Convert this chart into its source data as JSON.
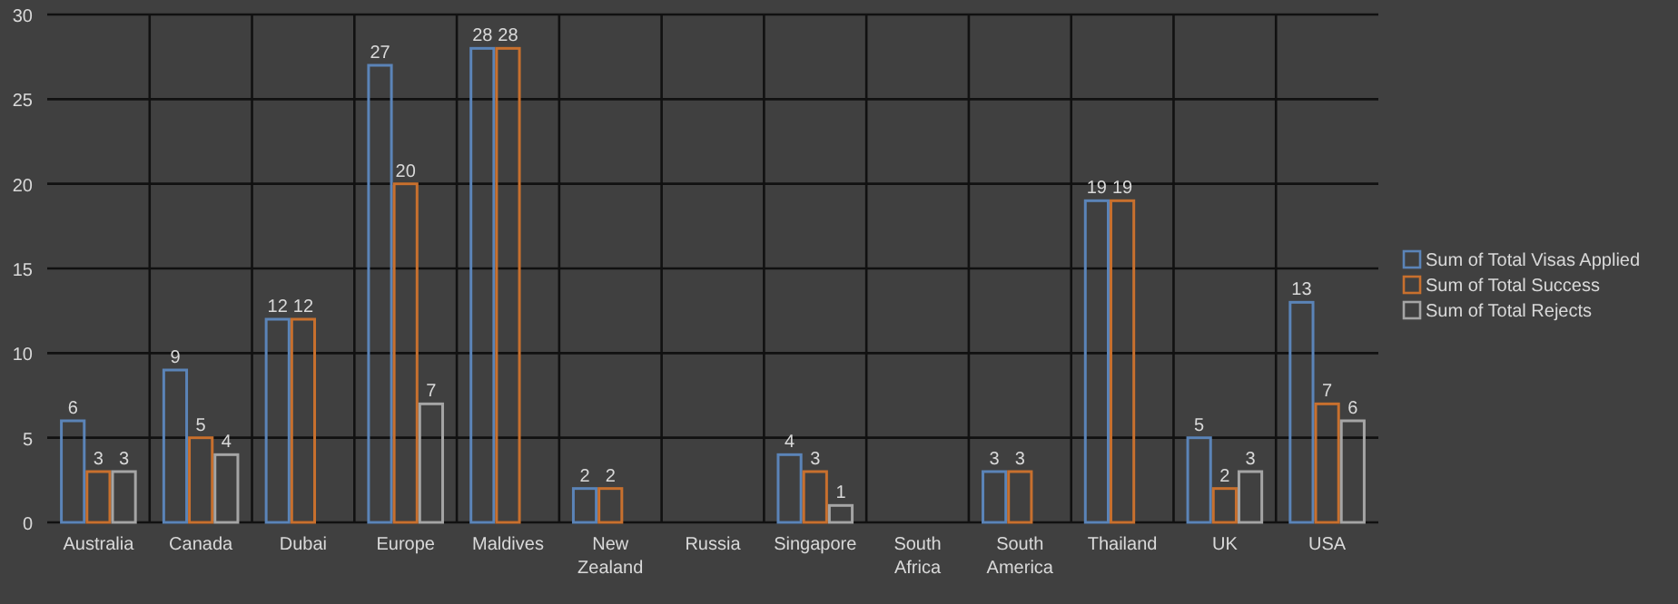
{
  "chart_data": {
    "type": "bar",
    "categories": [
      "Australia",
      "Canada",
      "Dubai",
      "Europe",
      "Maldives",
      "New Zealand",
      "Russia",
      "Singapore",
      "South Africa",
      "South America",
      "Thailand",
      "UK",
      "USA"
    ],
    "series": [
      {
        "name": "Sum of Total Visas Applied",
        "color": "#5b84b8",
        "values": [
          6,
          9,
          12,
          27,
          28,
          2,
          0,
          4,
          0,
          3,
          19,
          5,
          13
        ],
        "value_labels": [
          "6",
          "9",
          "12",
          "27",
          "28",
          "2",
          null,
          "4",
          null,
          "3",
          "19",
          "5",
          "13"
        ]
      },
      {
        "name": "Sum of Total Success",
        "color": "#c8702e",
        "values": [
          3,
          5,
          12,
          20,
          28,
          2,
          0,
          3,
          0,
          3,
          19,
          2,
          7
        ],
        "value_labels": [
          "3",
          "5",
          "12",
          "20",
          "28",
          "2",
          null,
          "3",
          null,
          "3",
          "19",
          "2",
          "7"
        ]
      },
      {
        "name": "Sum of Total Rejects",
        "color": "#a5a5a5",
        "values": [
          3,
          4,
          0,
          7,
          0,
          0,
          0,
          1,
          0,
          0,
          0,
          3,
          6
        ],
        "value_labels": [
          "3",
          "4",
          null,
          "7",
          null,
          null,
          null,
          "1",
          null,
          null,
          null,
          "3",
          "6"
        ]
      }
    ],
    "ylim": [
      0,
      30
    ],
    "yticks": [
      0,
      5,
      10,
      15,
      20,
      25,
      30
    ],
    "grid": true,
    "legend": "right"
  }
}
